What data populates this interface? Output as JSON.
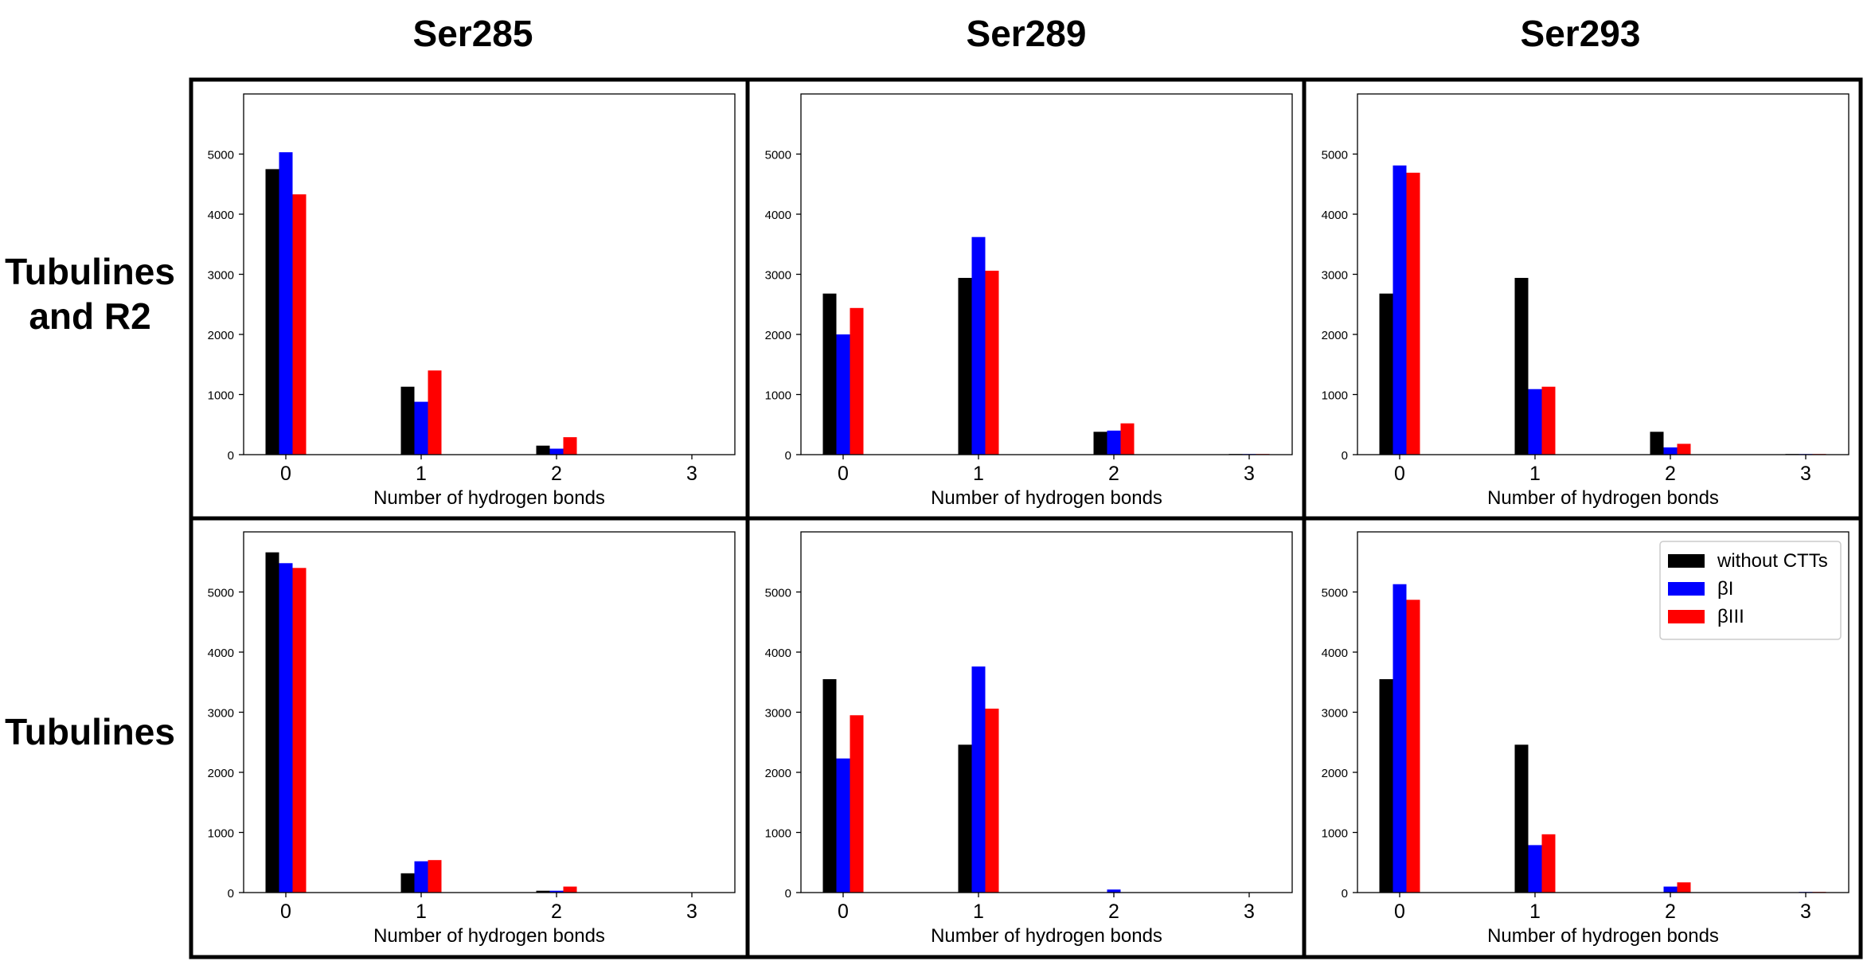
{
  "figure": {
    "column_titles": [
      "Ser285",
      "Ser289",
      "Ser293"
    ],
    "row_titles": [
      [
        "Tubulines",
        "and R2"
      ],
      [
        "Tubulines"
      ]
    ],
    "colors": {
      "without_ctts": "#000000",
      "beta_i": "#0000ff",
      "beta_iii": "#ff0000",
      "frame": "#000000"
    }
  },
  "chart_data": [
    {
      "type": "bar",
      "row": "Tubulines and R2",
      "column": "Ser285",
      "categories": [
        "0",
        "1",
        "2",
        "3"
      ],
      "xlabel": "Number of hydrogen bonds",
      "ylabel": "",
      "ylim": [
        0,
        6000
      ],
      "yticks": [
        0,
        1000,
        2000,
        3000,
        4000,
        5000
      ],
      "series": [
        {
          "name": "without CTTs",
          "color": "#000000",
          "values": [
            4750,
            1130,
            150,
            0
          ]
        },
        {
          "name": "βI",
          "color": "#0000ff",
          "values": [
            5030,
            880,
            100,
            0
          ]
        },
        {
          "name": "βIII",
          "color": "#ff0000",
          "values": [
            4330,
            1400,
            290,
            0
          ]
        }
      ]
    },
    {
      "type": "bar",
      "row": "Tubulines and R2",
      "column": "Ser289",
      "categories": [
        "0",
        "1",
        "2",
        "3"
      ],
      "xlabel": "Number of hydrogen bonds",
      "ylabel": "",
      "ylim": [
        0,
        6000
      ],
      "yticks": [
        0,
        1000,
        2000,
        3000,
        4000,
        5000
      ],
      "series": [
        {
          "name": "without CTTs",
          "color": "#000000",
          "values": [
            2680,
            2940,
            380,
            10
          ]
        },
        {
          "name": "βI",
          "color": "#0000ff",
          "values": [
            2000,
            3620,
            400,
            10
          ]
        },
        {
          "name": "βIII",
          "color": "#ff0000",
          "values": [
            2440,
            3060,
            520,
            10
          ]
        }
      ]
    },
    {
      "type": "bar",
      "row": "Tubulines and R2",
      "column": "Ser293",
      "categories": [
        "0",
        "1",
        "2",
        "3"
      ],
      "xlabel": "Number of hydrogen bonds",
      "ylabel": "",
      "ylim": [
        0,
        6000
      ],
      "yticks": [
        0,
        1000,
        2000,
        3000,
        4000,
        5000
      ],
      "series": [
        {
          "name": "without CTTs",
          "color": "#000000",
          "values": [
            2680,
            2940,
            380,
            10
          ]
        },
        {
          "name": "βI",
          "color": "#0000ff",
          "values": [
            4810,
            1090,
            120,
            10
          ]
        },
        {
          "name": "βIII",
          "color": "#ff0000",
          "values": [
            4690,
            1130,
            180,
            10
          ]
        }
      ]
    },
    {
      "type": "bar",
      "row": "Tubulines",
      "column": "Ser285",
      "categories": [
        "0",
        "1",
        "2",
        "3"
      ],
      "xlabel": "Number of hydrogen bonds",
      "ylabel": "",
      "ylim": [
        0,
        6000
      ],
      "yticks": [
        0,
        1000,
        2000,
        3000,
        4000,
        5000
      ],
      "series": [
        {
          "name": "without CTTs",
          "color": "#000000",
          "values": [
            5660,
            320,
            30,
            0
          ]
        },
        {
          "name": "βI",
          "color": "#0000ff",
          "values": [
            5480,
            520,
            30,
            0
          ]
        },
        {
          "name": "βIII",
          "color": "#ff0000",
          "values": [
            5400,
            540,
            100,
            0
          ]
        }
      ]
    },
    {
      "type": "bar",
      "row": "Tubulines",
      "column": "Ser289",
      "categories": [
        "0",
        "1",
        "2",
        "3"
      ],
      "xlabel": "Number of hydrogen bonds",
      "ylabel": "",
      "ylim": [
        0,
        6000
      ],
      "yticks": [
        0,
        1000,
        2000,
        3000,
        4000,
        5000
      ],
      "series": [
        {
          "name": "without CTTs",
          "color": "#000000",
          "values": [
            3550,
            2460,
            0,
            0
          ]
        },
        {
          "name": "βI",
          "color": "#0000ff",
          "values": [
            2230,
            3760,
            50,
            0
          ]
        },
        {
          "name": "βIII",
          "color": "#ff0000",
          "values": [
            2950,
            3060,
            0,
            0
          ]
        }
      ]
    },
    {
      "type": "bar",
      "row": "Tubulines",
      "column": "Ser293",
      "categories": [
        "0",
        "1",
        "2",
        "3"
      ],
      "xlabel": "Number of hydrogen bonds",
      "ylabel": "",
      "ylim": [
        0,
        6000
      ],
      "yticks": [
        0,
        1000,
        2000,
        3000,
        4000,
        5000
      ],
      "legend": {
        "position": "top-right",
        "entries": [
          "without CTTs",
          "βI",
          "βIII"
        ]
      },
      "series": [
        {
          "name": "without CTTs",
          "color": "#000000",
          "values": [
            3550,
            2460,
            0,
            0
          ]
        },
        {
          "name": "βI",
          "color": "#0000ff",
          "values": [
            5130,
            790,
            100,
            10
          ]
        },
        {
          "name": "βIII",
          "color": "#ff0000",
          "values": [
            4870,
            970,
            170,
            10
          ]
        }
      ]
    }
  ]
}
